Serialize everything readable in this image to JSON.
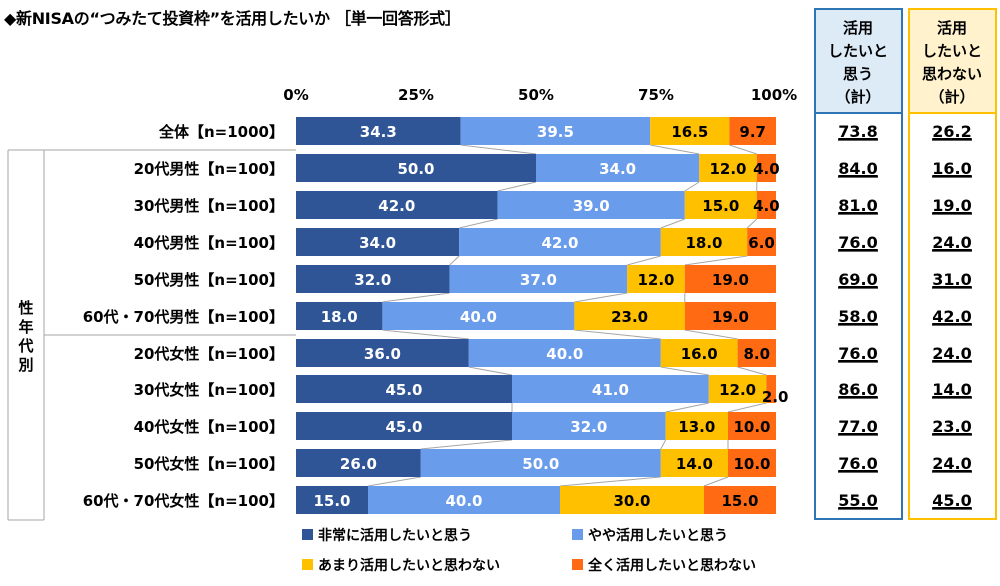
{
  "title": "◆新NISAの“つみたて投資枠”を活用したいか ［単一回答形式］",
  "group_label": "性年代別",
  "colors": {
    "series": [
      "#2F5597",
      "#6A9CEC",
      "#FFC000",
      "#FF6A13"
    ],
    "sum_positive_border": "#2E75B6",
    "sum_positive_bg": "#DDEBF7",
    "sum_negative_border": "#FFC000",
    "sum_negative_bg": "#FFF2CC"
  },
  "summary_headers": [
    [
      "活用",
      "したいと",
      "思う",
      "（計）"
    ],
    [
      "活用",
      "したいと",
      "思わない",
      "（計）"
    ]
  ],
  "chart_data": {
    "type": "bar",
    "stacked": "horizontal-100%",
    "x_ticks": [
      "0%",
      "25%",
      "50%",
      "75%",
      "100%"
    ],
    "categories": [
      "全体【n=1000】",
      "20代男性【n=100】",
      "30代男性【n=100】",
      "40代男性【n=100】",
      "50代男性【n=100】",
      "60代・70代男性【n=100】",
      "20代女性【n=100】",
      "30代女性【n=100】",
      "40代女性【n=100】",
      "50代女性【n=100】",
      "60代・70代女性【n=100】"
    ],
    "series": [
      {
        "name": "非常に活用したいと思う",
        "values": [
          34.3,
          50.0,
          42.0,
          34.0,
          32.0,
          18.0,
          36.0,
          45.0,
          45.0,
          26.0,
          15.0
        ]
      },
      {
        "name": "やや活用したいと思う",
        "values": [
          39.5,
          34.0,
          39.0,
          42.0,
          37.0,
          40.0,
          40.0,
          41.0,
          32.0,
          50.0,
          40.0
        ]
      },
      {
        "name": "あまり活用したいと思わない",
        "values": [
          16.5,
          12.0,
          15.0,
          18.0,
          12.0,
          23.0,
          16.0,
          12.0,
          13.0,
          14.0,
          30.0
        ]
      },
      {
        "name": "全く活用したいと思わない",
        "values": [
          9.7,
          4.0,
          4.0,
          6.0,
          19.0,
          19.0,
          8.0,
          2.0,
          10.0,
          10.0,
          15.0
        ]
      }
    ],
    "value_labels": [
      [
        "34.3",
        "50.0",
        "42.0",
        "34.0",
        "32.0",
        "18.0",
        "36.0",
        "45.0",
        "45.0",
        "26.0",
        "15.0"
      ],
      [
        "39.5",
        "34.0",
        "39.0",
        "42.0",
        "37.0",
        "40.0",
        "40.0",
        "41.0",
        "32.0",
        "50.0",
        "40.0"
      ],
      [
        "16.5",
        "12.0",
        "15.0",
        "18.0",
        "12.0",
        "23.0",
        "16.0",
        "12.0",
        "13.0",
        "14.0",
        "30.0"
      ],
      [
        "9.7",
        "4.0",
        "4.0",
        "6.0",
        "19.0",
        "19.0",
        "8.0",
        "2.0",
        "10.0",
        "10.0",
        "15.0"
      ]
    ],
    "sum_positive": [
      "73.8",
      "84.0",
      "81.0",
      "76.0",
      "69.0",
      "58.0",
      "76.0",
      "86.0",
      "77.0",
      "76.0",
      "55.0"
    ],
    "sum_negative": [
      "26.2",
      "16.0",
      "19.0",
      "24.0",
      "31.0",
      "42.0",
      "24.0",
      "14.0",
      "23.0",
      "24.0",
      "45.0"
    ],
    "xlim": [
      0,
      100
    ],
    "legend_position": "bottom"
  }
}
